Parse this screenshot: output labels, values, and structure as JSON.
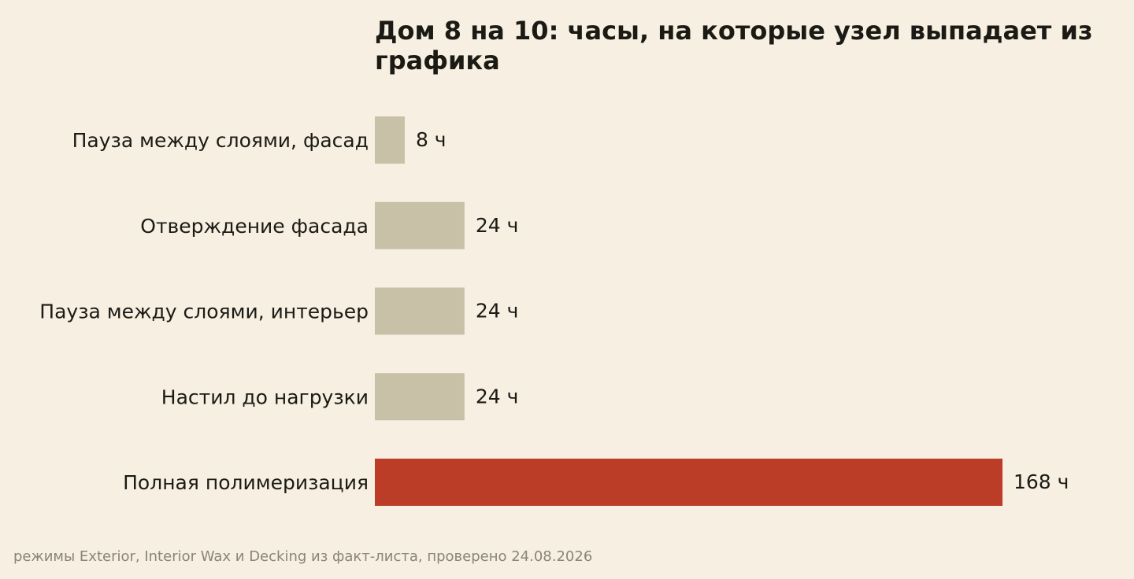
{
  "chart_data": {
    "type": "bar",
    "orientation": "horizontal",
    "title": "Дом 8 на 10: часы, на которые узел выпадает из графика",
    "categories": [
      "Пауза между слоями, фасад",
      "Отверждение фасада",
      "Пауза между слоями, интерьер",
      "Настил до нагрузки",
      "Полная полимеризация"
    ],
    "values": [
      8,
      24,
      24,
      24,
      168
    ],
    "unit_suffix": " ч",
    "value_labels": [
      "8 ч",
      "24 ч",
      "24 ч",
      "24 ч",
      "168 ч"
    ],
    "highlight_index": 4,
    "xlim": [
      0,
      168
    ],
    "grid": false,
    "legend": "none",
    "colors": {
      "base": "#c9c0a8",
      "highlight": "#bc3d27",
      "background": "#f6efe2",
      "text": "#1c1a14",
      "note": "#8a8578"
    }
  },
  "footnote": "режимы Exterior, Interior Wax и Decking из факт-листа, проверено 24.08.2026"
}
